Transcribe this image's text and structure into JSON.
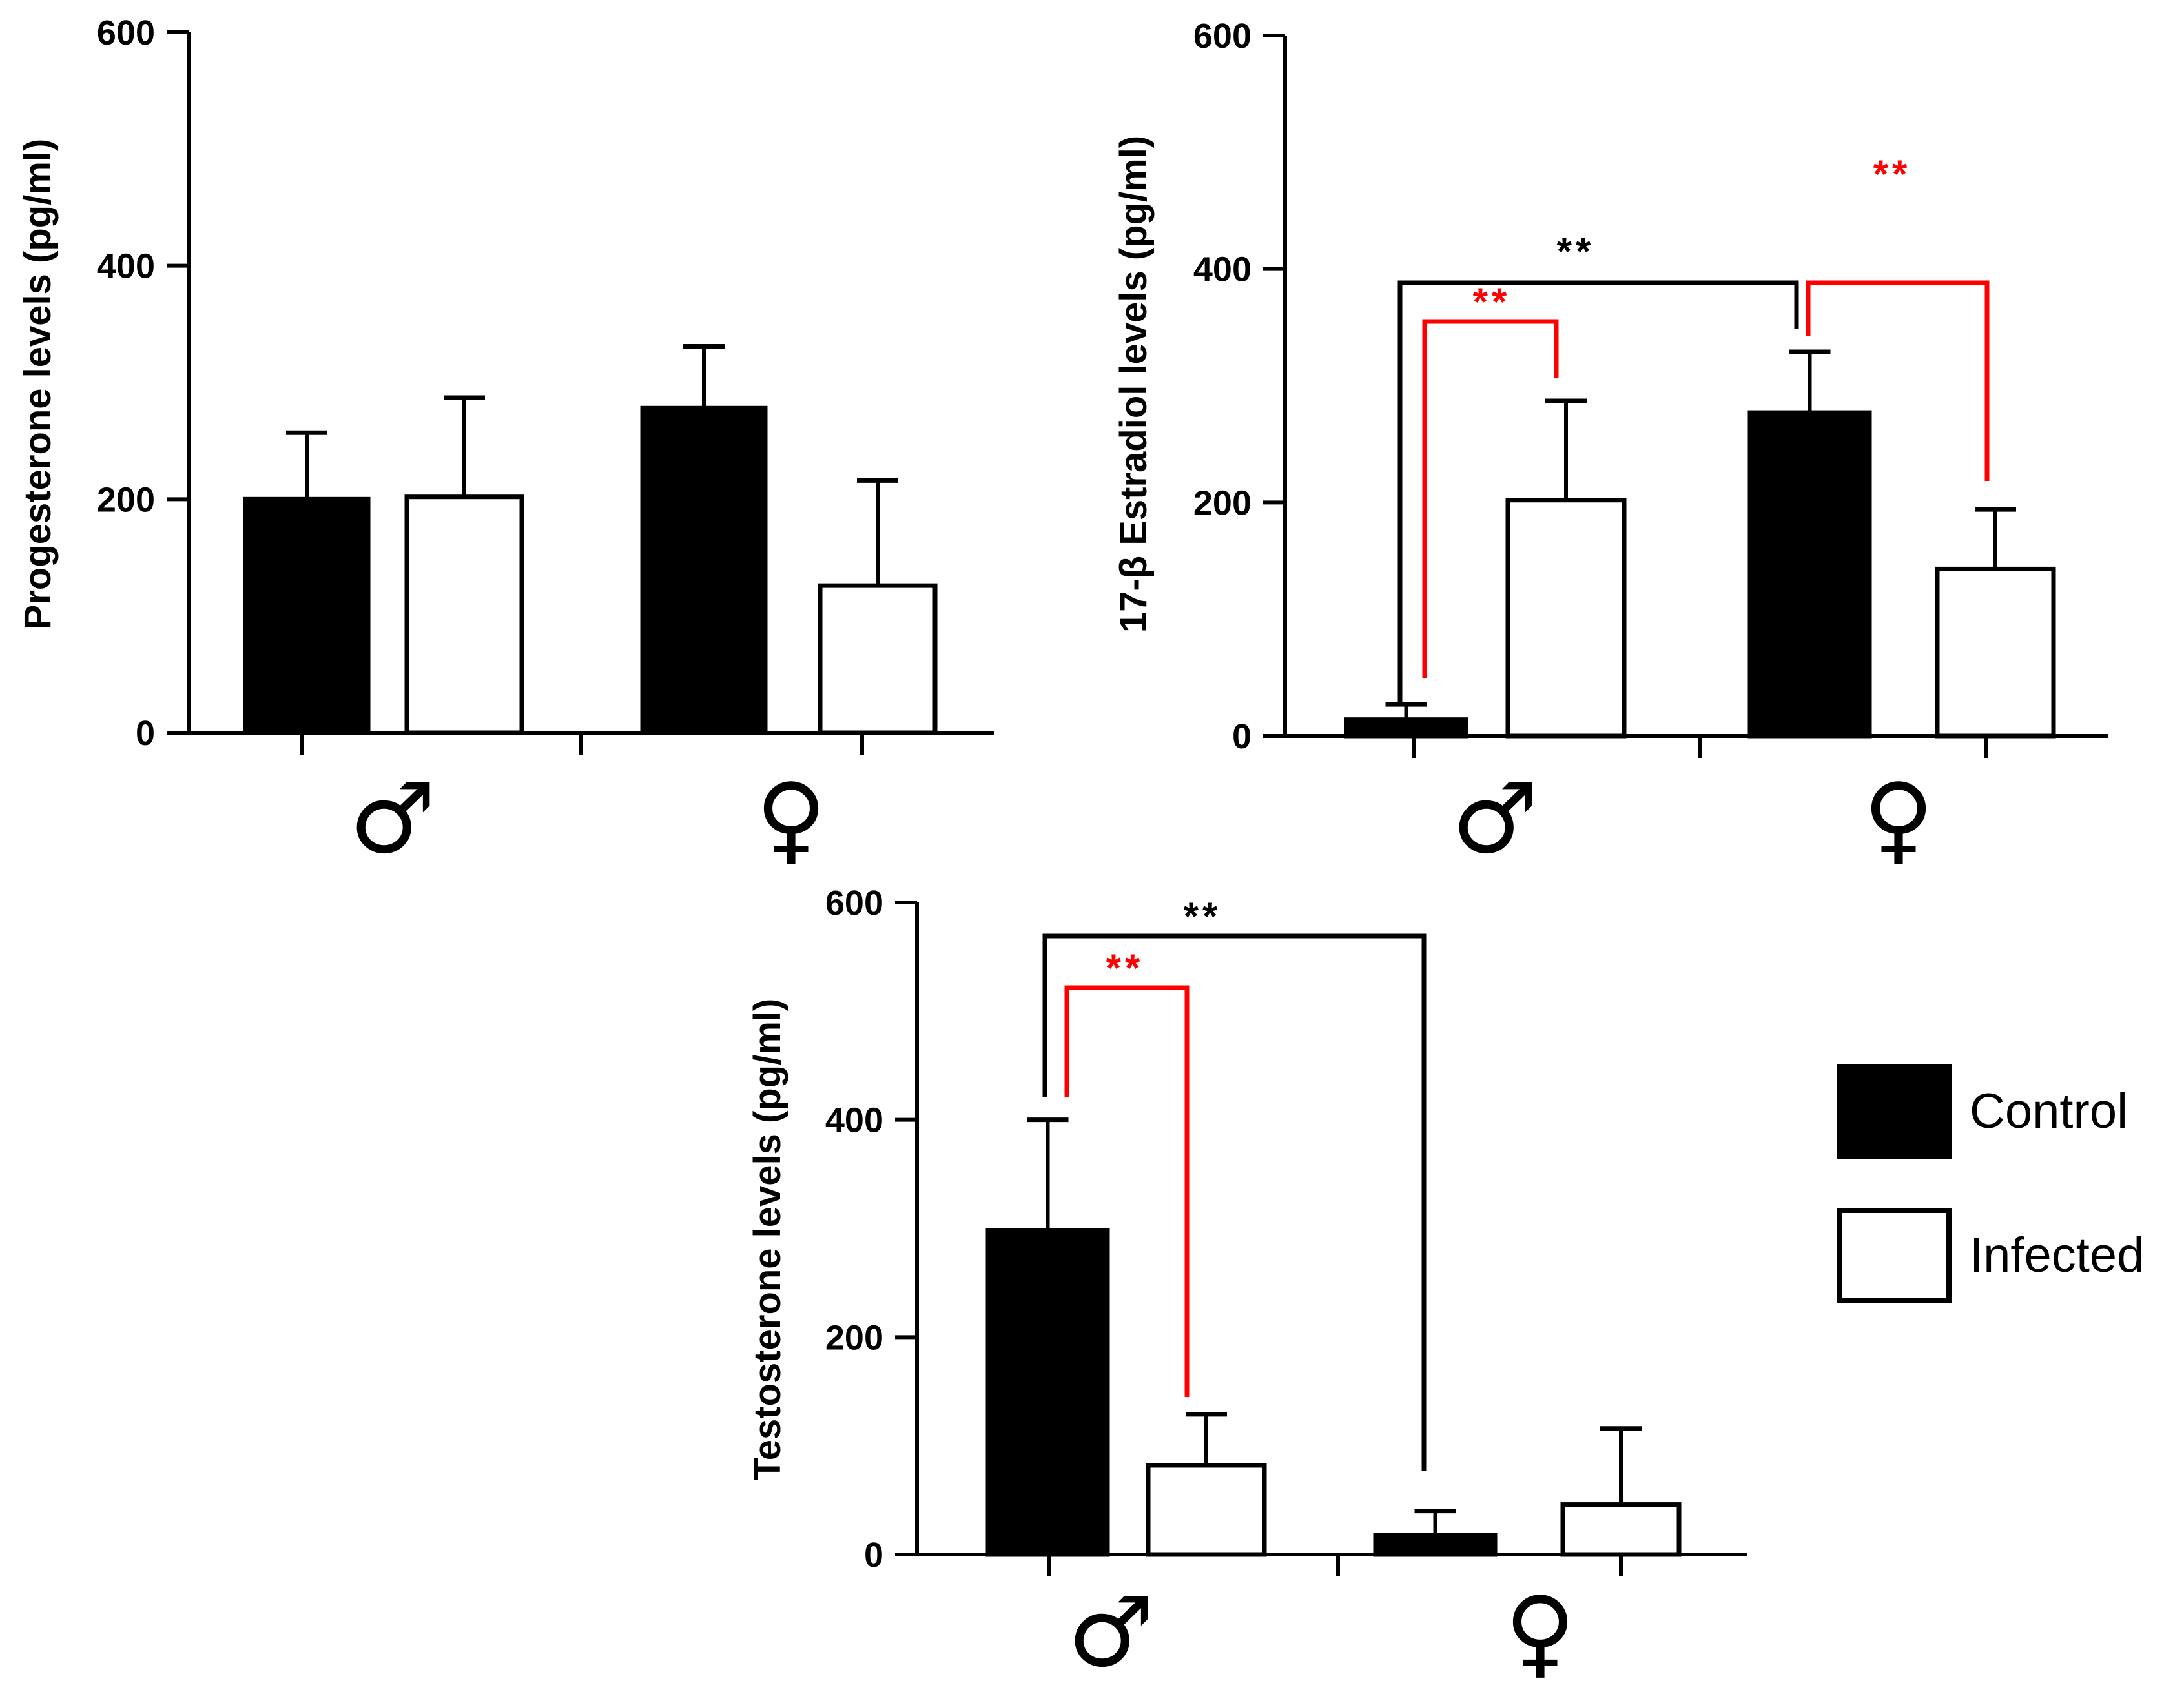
{
  "chart_data": [
    {
      "type": "bar",
      "panel": "progesterone",
      "ylabel": "Progesterone   levels (pg/ml)",
      "ylim": [
        0,
        600
      ],
      "yticks": [
        0,
        200,
        400,
        600
      ],
      "categories": [
        "♂",
        "♀"
      ],
      "series": [
        {
          "name": "Control",
          "values": [
            200,
            278
          ],
          "errors": [
            57,
            53
          ]
        },
        {
          "name": "Infected",
          "values": [
            202,
            126
          ],
          "errors": [
            85,
            90
          ]
        }
      ],
      "significance": []
    },
    {
      "type": "bar",
      "panel": "estradiol",
      "ylabel": "17-β Estradiol    levels (pg/ml)",
      "ylim": [
        0,
        600
      ],
      "yticks": [
        0,
        200,
        400,
        600
      ],
      "categories": [
        "♂",
        "♀"
      ],
      "series": [
        {
          "name": "Control",
          "values": [
            14,
            277
          ],
          "errors": [
            13,
            52
          ]
        },
        {
          "name": "Infected",
          "values": [
            202,
            143
          ],
          "errors": [
            85,
            51
          ]
        }
      ],
      "significance": [
        {
          "from": "Male Control",
          "to": "Female Control",
          "label": "**",
          "color": "#000000"
        },
        {
          "from": "Male Control",
          "to": "Male Infected",
          "label": "**",
          "color": "#ff0000"
        },
        {
          "from": "Female Control",
          "to": "Female Infected",
          "label": "**",
          "color": "#ff0000"
        }
      ]
    },
    {
      "type": "bar",
      "panel": "testosterone",
      "ylabel": "Testosterone  levels (pg/ml)",
      "ylim": [
        0,
        600
      ],
      "yticks": [
        0,
        200,
        400,
        600
      ],
      "categories": [
        "♂",
        "♀"
      ],
      "series": [
        {
          "name": "Control",
          "values": [
            298,
            18
          ],
          "errors": [
            102,
            22
          ]
        },
        {
          "name": "Infected",
          "values": [
            82,
            46
          ],
          "errors": [
            47,
            70
          ]
        }
      ],
      "significance": [
        {
          "from": "Male Control",
          "to": "Female Control",
          "label": "**",
          "color": "#000000"
        },
        {
          "from": "Male Control",
          "to": "Male Infected",
          "label": "**",
          "color": "#ff0000"
        }
      ]
    }
  ],
  "legend": {
    "items": [
      {
        "label": "Control",
        "fill": "#000000"
      },
      {
        "label": "Infected",
        "fill": "#ffffff"
      }
    ]
  },
  "colors": {
    "bar_control": "#000000",
    "bar_infected": "#ffffff",
    "sig_black": "#000000",
    "sig_red": "#ff0000"
  }
}
